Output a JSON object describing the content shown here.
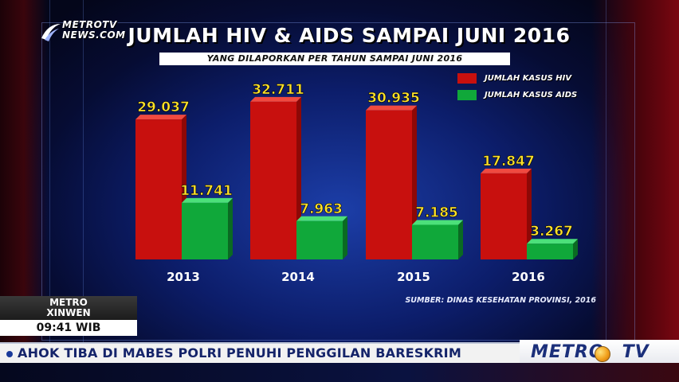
{
  "channel_logo": {
    "line1": "METROTV",
    "line2": "NEWS.COM"
  },
  "chart_data": {
    "type": "bar",
    "title": "JUMLAH HIV & AIDS SAMPAI JUNI 2016",
    "subtitle": "YANG DILAPORKAN PER TAHUN SAMPAI JUNI 2016",
    "categories": [
      "2013",
      "2014",
      "2015",
      "2016"
    ],
    "series": [
      {
        "name": "JUMLAH KASUS HIV",
        "color": "#c8100e",
        "values": [
          29037,
          32711,
          30935,
          17847
        ],
        "labels": [
          "29.037",
          "32.711",
          "30.935",
          "17.847"
        ]
      },
      {
        "name": "JUMLAH KASUS AIDS",
        "color": "#10a83a",
        "values": [
          11741,
          7963,
          7185,
          3267
        ],
        "labels": [
          "11.741",
          "7.963",
          "7.185",
          "3.267"
        ]
      }
    ],
    "ylim": [
      0,
      35000
    ],
    "grid": false,
    "legend": "top-right",
    "xlabel": "",
    "ylabel": ""
  },
  "source": "SUMBER: DINAS KESEHATAN PROVINSI, 2016",
  "clock": {
    "line1": "METRO",
    "line2": "XINWEN",
    "time": "09:41 WIB"
  },
  "ticker": {
    "text": "AHOK TIBA DI MABES POLRI PENUHI PENGGILAN BARESKRIM"
  },
  "brand": {
    "name": "METRO",
    "suffix": "TV"
  }
}
